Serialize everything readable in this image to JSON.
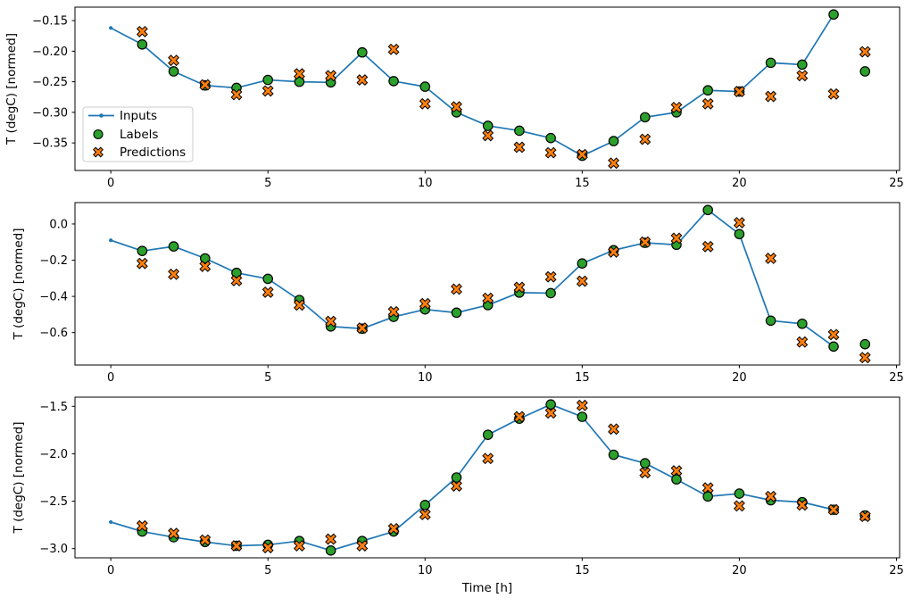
{
  "figure": {
    "xlabel": "Time [h]",
    "ylabel": "T (degC) [normed]",
    "background_color": "#ffffff",
    "axes_color": "#000000",
    "legend": {
      "location": "left side of first subplot",
      "border_color": "#cccccc",
      "fill_color": "#ffffff",
      "entries": [
        {
          "label": "Inputs",
          "marker": "line-with-dot",
          "color": "#1f77b4",
          "edge": "#1f77b4"
        },
        {
          "label": "Labels",
          "marker": "filled-circle",
          "color": "#2ca02c",
          "edge": "#000000"
        },
        {
          "label": "Predictions",
          "marker": "filled-x",
          "color": "#ff7f0e",
          "edge": "#000000"
        }
      ]
    }
  },
  "chart_data": [
    {
      "type": "line",
      "title": "",
      "xlabel": "",
      "ylabel": "T (degC) [normed]",
      "xlim": [
        -1.14,
        25.1
      ],
      "ylim": [
        -0.395,
        -0.128
      ],
      "xticks": [
        0,
        5,
        10,
        15,
        20,
        25
      ],
      "xtick_labels": [
        "0",
        "5",
        "10",
        "15",
        "20",
        "25"
      ],
      "yticks": [
        -0.15,
        -0.2,
        -0.25,
        -0.3,
        -0.35
      ],
      "ytick_labels": [
        "−0.15",
        "−0.20",
        "−0.25",
        "−0.30",
        "−0.35"
      ],
      "grid": false,
      "legend_position": "center left inside axes",
      "series": [
        {
          "name": "Inputs",
          "kind": "line",
          "marker": "dot",
          "color": "#1f77b4",
          "x": [
            0,
            1,
            2,
            3,
            4,
            5,
            6,
            7,
            8,
            9,
            10,
            11,
            12,
            13,
            14,
            15,
            16,
            17,
            18,
            19,
            20,
            21,
            22,
            23
          ],
          "y": [
            -0.162,
            -0.189,
            -0.233,
            -0.256,
            -0.26,
            -0.247,
            -0.25,
            -0.251,
            -0.202,
            -0.249,
            -0.258,
            -0.3,
            -0.322,
            -0.33,
            -0.342,
            -0.371,
            -0.347,
            -0.308,
            -0.3,
            -0.264,
            -0.266,
            -0.219,
            -0.222,
            -0.14
          ]
        },
        {
          "name": "Labels",
          "kind": "scatter",
          "marker": "circle",
          "color": "#2ca02c",
          "x": [
            1,
            2,
            3,
            4,
            5,
            6,
            7,
            8,
            9,
            10,
            11,
            12,
            13,
            14,
            15,
            16,
            17,
            18,
            19,
            20,
            21,
            22,
            23,
            24
          ],
          "y": [
            -0.189,
            -0.233,
            -0.256,
            -0.26,
            -0.247,
            -0.25,
            -0.251,
            -0.202,
            -0.249,
            -0.258,
            -0.3,
            -0.322,
            -0.33,
            -0.342,
            -0.371,
            -0.347,
            -0.308,
            -0.3,
            -0.264,
            -0.266,
            -0.219,
            -0.222,
            -0.14,
            -0.233
          ]
        },
        {
          "name": "Predictions",
          "kind": "scatter",
          "marker": "X",
          "color": "#ff7f0e",
          "x": [
            1,
            2,
            3,
            4,
            5,
            6,
            7,
            8,
            9,
            10,
            11,
            12,
            13,
            14,
            15,
            16,
            17,
            18,
            19,
            20,
            21,
            22,
            23,
            24
          ],
          "y": [
            -0.168,
            -0.215,
            -0.255,
            -0.271,
            -0.265,
            -0.237,
            -0.24,
            -0.247,
            -0.197,
            -0.286,
            -0.291,
            -0.338,
            -0.357,
            -0.366,
            -0.369,
            -0.383,
            -0.344,
            -0.292,
            -0.286,
            -0.266,
            -0.274,
            -0.24,
            -0.27,
            -0.201
          ]
        }
      ]
    },
    {
      "type": "line",
      "title": "",
      "xlabel": "",
      "ylabel": "T (degC) [normed]",
      "xlim": [
        -1.14,
        25.1
      ],
      "ylim": [
        -0.779,
        0.118
      ],
      "xticks": [
        0,
        5,
        10,
        15,
        20,
        25
      ],
      "xtick_labels": [
        "0",
        "5",
        "10",
        "15",
        "20",
        "25"
      ],
      "yticks": [
        0.0,
        -0.2,
        -0.4,
        -0.6
      ],
      "ytick_labels": [
        "0.0",
        "−0.2",
        "−0.4",
        "−0.6"
      ],
      "grid": false,
      "series": [
        {
          "name": "Inputs",
          "kind": "line",
          "marker": "dot",
          "color": "#1f77b4",
          "x": [
            0,
            1,
            2,
            3,
            4,
            5,
            6,
            7,
            8,
            9,
            10,
            11,
            12,
            13,
            14,
            15,
            16,
            17,
            18,
            19,
            20,
            21,
            22,
            23
          ],
          "y": [
            -0.09,
            -0.149,
            -0.124,
            -0.19,
            -0.27,
            -0.303,
            -0.42,
            -0.566,
            -0.578,
            -0.513,
            -0.472,
            -0.49,
            -0.448,
            -0.379,
            -0.382,
            -0.218,
            -0.145,
            -0.104,
            -0.115,
            0.077,
            -0.056,
            -0.534,
            -0.551,
            -0.677
          ]
        },
        {
          "name": "Labels",
          "kind": "scatter",
          "marker": "circle",
          "color": "#2ca02c",
          "x": [
            1,
            2,
            3,
            4,
            5,
            6,
            7,
            8,
            9,
            10,
            11,
            12,
            13,
            14,
            15,
            16,
            17,
            18,
            19,
            20,
            21,
            22,
            23,
            24
          ],
          "y": [
            -0.149,
            -0.124,
            -0.19,
            -0.27,
            -0.303,
            -0.42,
            -0.566,
            -0.578,
            -0.513,
            -0.472,
            -0.49,
            -0.448,
            -0.379,
            -0.382,
            -0.218,
            -0.145,
            -0.104,
            -0.115,
            0.077,
            -0.056,
            -0.534,
            -0.551,
            -0.677,
            -0.664
          ]
        },
        {
          "name": "Predictions",
          "kind": "scatter",
          "marker": "X",
          "color": "#ff7f0e",
          "x": [
            1,
            2,
            3,
            4,
            5,
            6,
            7,
            8,
            9,
            10,
            11,
            12,
            13,
            14,
            15,
            16,
            17,
            18,
            19,
            20,
            21,
            22,
            23,
            24
          ],
          "y": [
            -0.218,
            -0.278,
            -0.234,
            -0.313,
            -0.377,
            -0.448,
            -0.538,
            -0.575,
            -0.485,
            -0.44,
            -0.36,
            -0.41,
            -0.35,
            -0.292,
            -0.316,
            -0.155,
            -0.1,
            -0.079,
            -0.125,
            0.007,
            -0.19,
            -0.652,
            -0.611,
            -0.738
          ]
        }
      ]
    },
    {
      "type": "line",
      "title": "",
      "xlabel": "Time [h]",
      "ylabel": "T (degC) [normed]",
      "xlim": [
        -1.14,
        25.1
      ],
      "ylim": [
        -3.097,
        -1.403
      ],
      "xticks": [
        0,
        5,
        10,
        15,
        20,
        25
      ],
      "xtick_labels": [
        "0",
        "5",
        "10",
        "15",
        "20",
        "25"
      ],
      "yticks": [
        -1.5,
        -2.0,
        -2.5,
        -3.0
      ],
      "ytick_labels": [
        "−1.5",
        "−2.0",
        "−2.5",
        "−3.0"
      ],
      "grid": false,
      "series": [
        {
          "name": "Inputs",
          "kind": "line",
          "marker": "dot",
          "color": "#1f77b4",
          "x": [
            0,
            1,
            2,
            3,
            4,
            5,
            6,
            7,
            8,
            9,
            10,
            11,
            12,
            13,
            14,
            15,
            16,
            17,
            18,
            19,
            20,
            21,
            22,
            23
          ],
          "y": [
            -2.72,
            -2.82,
            -2.88,
            -2.93,
            -2.97,
            -2.96,
            -2.92,
            -3.02,
            -2.92,
            -2.82,
            -2.54,
            -2.25,
            -1.8,
            -1.63,
            -1.48,
            -1.61,
            -2.01,
            -2.1,
            -2.27,
            -2.45,
            -2.42,
            -2.49,
            -2.51,
            -2.59
          ]
        },
        {
          "name": "Labels",
          "kind": "scatter",
          "marker": "circle",
          "color": "#2ca02c",
          "x": [
            1,
            2,
            3,
            4,
            5,
            6,
            7,
            8,
            9,
            10,
            11,
            12,
            13,
            14,
            15,
            16,
            17,
            18,
            19,
            20,
            21,
            22,
            23,
            24
          ],
          "y": [
            -2.82,
            -2.88,
            -2.93,
            -2.97,
            -2.96,
            -2.92,
            -3.02,
            -2.92,
            -2.82,
            -2.54,
            -2.25,
            -1.8,
            -1.63,
            -1.48,
            -1.61,
            -2.01,
            -2.1,
            -2.27,
            -2.45,
            -2.42,
            -2.49,
            -2.51,
            -2.59,
            -2.65
          ]
        },
        {
          "name": "Predictions",
          "kind": "scatter",
          "marker": "X",
          "color": "#ff7f0e",
          "x": [
            1,
            2,
            3,
            4,
            5,
            6,
            7,
            8,
            9,
            10,
            11,
            12,
            13,
            14,
            15,
            16,
            17,
            18,
            19,
            20,
            21,
            22,
            23,
            24
          ],
          "y": [
            -2.76,
            -2.84,
            -2.91,
            -2.97,
            -2.99,
            -2.97,
            -2.9,
            -2.97,
            -2.79,
            -2.64,
            -2.34,
            -2.05,
            -1.61,
            -1.57,
            -1.49,
            -1.74,
            -2.2,
            -2.18,
            -2.36,
            -2.55,
            -2.45,
            -2.54,
            -2.59,
            -2.66
          ]
        }
      ]
    }
  ]
}
